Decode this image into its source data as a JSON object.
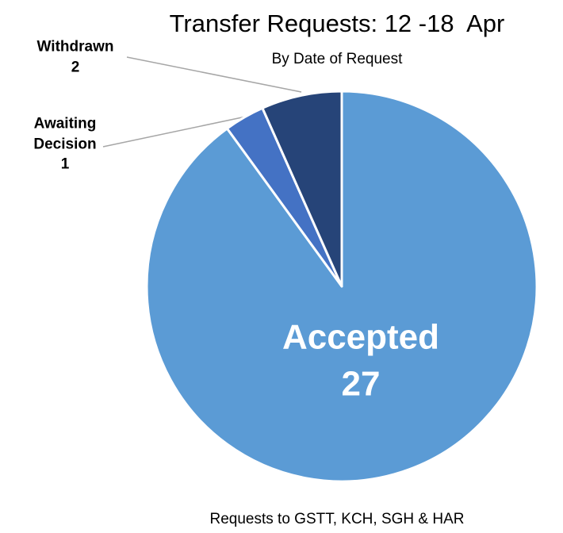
{
  "chart_data": {
    "type": "pie",
    "title": "Transfer Requests: 12 -18  Apr",
    "subtitle": "By Date of Request",
    "footnote": "Requests to GSTT, KCH, SGH & HAR",
    "categories": [
      "Accepted",
      "Awaiting Decision",
      "Withdrawn"
    ],
    "values": [
      27,
      1,
      2
    ],
    "colors": [
      "#5b9bd5",
      "#4472c4",
      "#264478"
    ]
  }
}
